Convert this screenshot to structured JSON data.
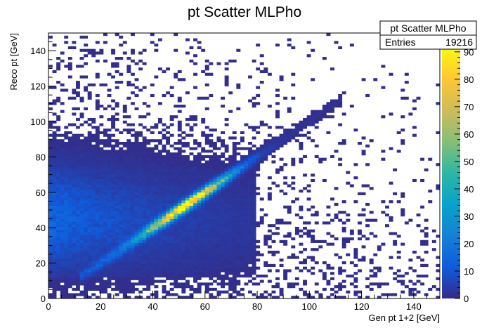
{
  "chart_data": {
    "type": "heatmap",
    "title": "pt Scatter MLPho",
    "xlabel": "Gen pt 1+2 [GeV]",
    "ylabel": "Reco pt [GeV]",
    "xlim": [
      0,
      150
    ],
    "ylim": [
      0,
      150
    ],
    "bins": {
      "x": 100,
      "y": 100
    },
    "xticks": [
      0,
      20,
      40,
      60,
      80,
      100,
      120,
      140
    ],
    "yticks": [
      0,
      20,
      40,
      60,
      80,
      100,
      120,
      140
    ],
    "zlim": [
      0,
      92
    ],
    "colorbar_ticks": [
      0,
      10,
      20,
      30,
      40,
      50,
      60,
      70,
      80,
      90
    ],
    "palette": [
      "#352a87",
      "#0f5cdd",
      "#1481d6",
      "#06a4ca",
      "#2eb7a4",
      "#87bf77",
      "#d1bb59",
      "#fec832",
      "#f9fb0e"
    ],
    "stats": {
      "name": "pt Scatter MLPho",
      "entries_label": "Entries",
      "entries_value": "19216"
    },
    "features": {
      "diagonal_ridge": {
        "from_x": 12,
        "to_x": 112,
        "peak_x": 53,
        "peak_y": 52,
        "peak_count": 92
      },
      "low_pt_background_region": {
        "x": [
          0,
          70
        ],
        "y": [
          10,
          90
        ]
      }
    }
  }
}
